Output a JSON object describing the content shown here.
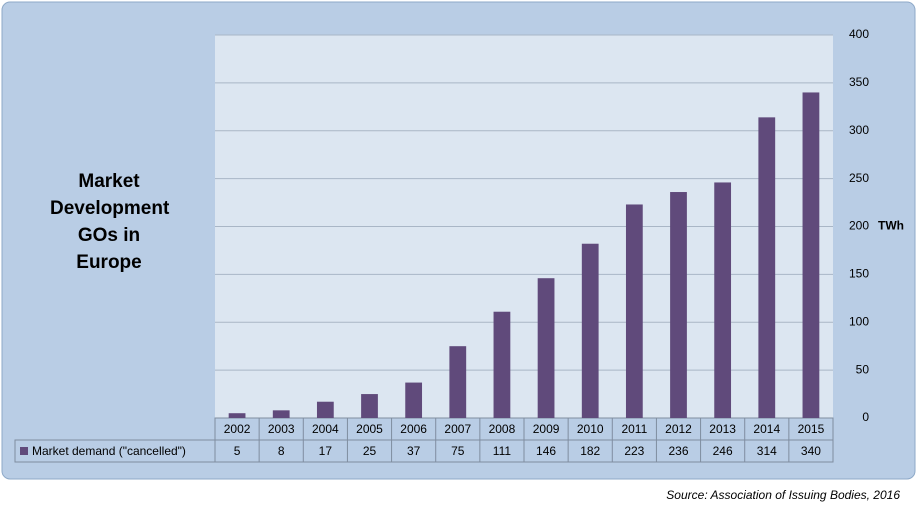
{
  "chart_data": {
    "type": "bar",
    "title": "Market Development GOs in Europe",
    "y_axis_label": "TWh",
    "categories": [
      "2002",
      "2003",
      "2004",
      "2005",
      "2006",
      "2007",
      "2008",
      "2009",
      "2010",
      "2011",
      "2012",
      "2013",
      "2014",
      "2015"
    ],
    "series": [
      {
        "name": "Market demand (\"cancelled\")",
        "color": "#604a7b",
        "values": [
          5,
          8,
          17,
          25,
          37,
          75,
          111,
          146,
          182,
          223,
          236,
          246,
          314,
          340
        ]
      }
    ],
    "ylim": [
      0,
      400
    ],
    "yticks": [
      0,
      50,
      100,
      150,
      200,
      250,
      300,
      350,
      400
    ],
    "grid": true,
    "source": "Source: Association of Issuing Bodies, 2016"
  }
}
